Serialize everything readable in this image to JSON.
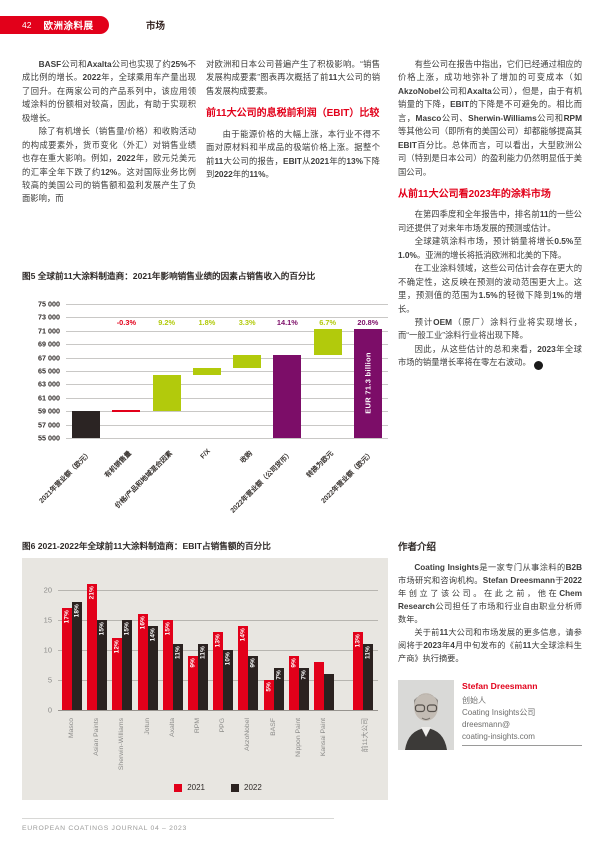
{
  "page": {
    "number": "42",
    "badge": "欧洲涂料展",
    "tab": "市场",
    "footer": "EUROPEAN COATINGS JOURNAL 04 – 2023"
  },
  "columns": {
    "col1_p1": "BASF公司和Axalta公司也实现了约25%不成比例的增长。2022年，全球乘用车产量出现了回升。在两家公司的产品系列中，该应用领域涂料的份额相对较高，因此，有助于实现积极增长。",
    "col1_p2": "除了有机增长（销售量/价格）和收购活动的构成要素外，货币变化（外汇）对销售业绩也存在重大影响。例如，2022年，欧元兑美元的汇率全年下跌了约12%。这对国际业务比例较高的美国公司的销售额和盈利发展产生了负面影响，而",
    "col2_p1": "对欧洲和日本公司普遍产生了积极影响。“销售发展构成要素”图表再次概括了前11大公司的销售发展构成要素。",
    "ebit_heading": "前11大公司的息税前利润（EBIT）比较",
    "col2_p2": "由于能源价格的大幅上涨，本行业不得不面对原材料和半成品的极端价格上涨。据整个前11大公司的报告，EBIT从2021年的13%下降到2022年的11%。",
    "col3_p1": "有些公司在报告中指出，它们已经通过相应的价格上涨，成功地弥补了增加的可变成本（如AkzoNobel公司和Axalta公司），但是，由于有机销量的下降，EBIT的下降是不可避免的。相比而言，Masco公司、Sherwin-Williams公司和RPM等其他公司（即所有的美国公司）却都能够提高其EBIT百分比。总体而言，可以看出，大型欧洲公司（特别是日本公司）的盈利能力仍然明显低于美国公司。",
    "outlook_heading": "从前11大公司看2023年的涂料市场",
    "col3_p2": "在第四季度和全年报告中，排名前11的一些公司还提供了对来年市场发展的预测或估计。",
    "col3_p3": "全球建筑涂料市场，预计销量将增长0.5%至1.0%。亚洲的增长将抵消欧洲和北美的下降。",
    "col3_p4": "在工业涂料领域，这些公司估计会存在更大的不确定性，这反映在预测的波动范围更大上。这里，预测值的范围为1.5%的轻微下降到1%的增长。",
    "col3_p5": "预计OEM（原厂）涂料行业将实现增长，而“一般工业”涂料行业将出现下降。",
    "col3_p6": "因此，从这些估计的总和来看，2023年全球市场的销量增长率将在零左右波动。"
  },
  "author": {
    "heading": "作者介绍",
    "p1": "Coating Insights是一家专门从事涂料的B2B市场研究和咨询机构。Stefan Dreesmann于2022年创立了该公司。在此之前，他在Chem Research公司担任了市场和行业自由职业分析师数年。",
    "p2": "关于前11大公司和市场发展的更多信息，请参阅将于2023年4月中旬发布的《前11大全球涂料生产商》执行摘要。",
    "name": "Stefan Dreesmann",
    "title": "创始人",
    "company": "Coating Insights公司",
    "email_line1": "dreesmann@",
    "email_line2": "coating-insights.com"
  },
  "colors": {
    "brand_red": "#e2001a",
    "chart_black": "#2b2423",
    "chart_green": "#b2ca0c",
    "chart_purple": "#7c0d68",
    "bar_red": "#e2001a",
    "bar_black": "#2b2220",
    "panel_bg": "#e8e6e1"
  },
  "chart_data": [
    {
      "type": "bar",
      "subtype": "waterfall",
      "title": "图5 全球前11大涂料制造商：2021年影响销售业绩的因素占销售收入的百分比",
      "ylim": [
        55000,
        75000
      ],
      "yticks": [
        "75 000",
        "73 000",
        "71 000",
        "69 000",
        "67 000",
        "65 000",
        "63 000",
        "61 000",
        "59 000",
        "57 000",
        "55 000"
      ],
      "grid": true,
      "bars": [
        {
          "label": "2021年营业额（欧元）",
          "start": 55000,
          "end": 59000,
          "kind": "start",
          "pct": ""
        },
        {
          "label": "有机销售量",
          "start": 59000,
          "end": 59000,
          "kind": "decrease",
          "pct": "-0.3%"
        },
        {
          "label": "价格/产品和地域混合因素",
          "start": 59000,
          "end": 64400,
          "kind": "increase",
          "pct": "9.2%"
        },
        {
          "label": "F/X",
          "start": 64400,
          "end": 65460,
          "kind": "increase",
          "pct": "1.8%"
        },
        {
          "label": "收购",
          "start": 65460,
          "end": 67400,
          "kind": "increase",
          "pct": "3.3%"
        },
        {
          "label": "2022年营业额（公司货币）",
          "start": 55000,
          "end": 67320,
          "kind": "subtotal",
          "pct": "14.1%"
        },
        {
          "label": "转换为欧元",
          "start": 67320,
          "end": 71270,
          "kind": "increase",
          "pct": "6.7%"
        },
        {
          "label": "2022年营业额（欧元）",
          "start": 55000,
          "end": 71270,
          "kind": "subtotal",
          "pct": "20.8%",
          "bar_label": "EUR 71.3 billion"
        }
      ]
    },
    {
      "type": "bar",
      "title": "图6 2021-2022年全球前11大涂料制造商：EBIT占销售额的百分比",
      "categories": [
        "Masco",
        "Asian Paints",
        "Sherwin-Williams",
        "Jotun",
        "Axalta",
        "RPM",
        "PPG",
        "AkzoNobel",
        "BASF",
        "Nippon Paint",
        "Kansai Paint",
        "前11大公司"
      ],
      "series": [
        {
          "name": "2021",
          "color": "#e2001a",
          "values": [
            17,
            21,
            12,
            16,
            15,
            9,
            13,
            14,
            5,
            9,
            8,
            13
          ],
          "labels": [
            "17%",
            "21%",
            "12%",
            "16%",
            "15%",
            "9%",
            "13%",
            "14%",
            "5%",
            "9%",
            "",
            "13%"
          ]
        },
        {
          "name": "2022",
          "color": "#2b2220",
          "values": [
            18,
            15,
            15,
            14,
            11,
            11,
            10,
            9,
            7,
            7,
            6,
            11
          ],
          "labels": [
            "18%",
            "15%",
            "15%",
            "14%",
            "11%",
            "11%",
            "10%",
            "9%",
            "7%",
            "7%",
            "",
            "11%"
          ]
        }
      ],
      "ylim": [
        0,
        20
      ],
      "yticks": [
        0,
        5,
        10,
        15,
        20
      ],
      "grid": true,
      "legend_position": "bottom"
    }
  ]
}
